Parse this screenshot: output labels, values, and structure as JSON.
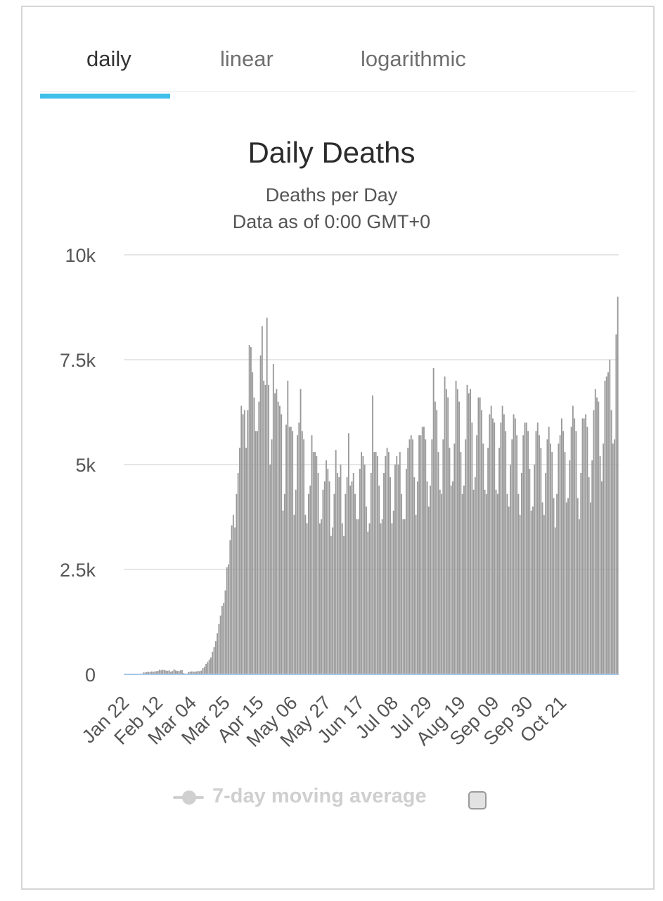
{
  "tabs": [
    {
      "label": "daily",
      "active": true
    },
    {
      "label": "linear",
      "active": false
    },
    {
      "label": "logarithmic",
      "active": false
    }
  ],
  "colors": {
    "accent": "#3fc0ea",
    "bar": "#9a9a9a",
    "grid": "#e6e6e6",
    "baseline": "#a9c6e8"
  },
  "chart_data": {
    "type": "bar",
    "title": "Daily Deaths",
    "subtitle_lines": [
      "Deaths per Day",
      "Data as of 0:00 GMT+0"
    ],
    "xlabel": "",
    "ylabel": "",
    "ylim": [
      0,
      10000
    ],
    "yticks": [
      0,
      2500,
      5000,
      7500,
      10000
    ],
    "ytick_labels": [
      "0",
      "2.5k",
      "5k",
      "7.5k",
      "10k"
    ],
    "xtick_labels": [
      "Jan 22",
      "Feb 12",
      "Mar 04",
      "Mar 25",
      "Apr 15",
      "May 06",
      "May 27",
      "Jun 17",
      "Jul 08",
      "Jul 29",
      "Aug 19",
      "Sep 09",
      "Sep 30",
      "Oct 21"
    ],
    "grid": true,
    "series": [
      {
        "name": "Daily Deaths",
        "values": [
          0,
          0,
          0,
          0,
          0,
          0,
          0,
          0,
          0,
          0,
          0,
          0,
          45,
          45,
          55,
          60,
          55,
          70,
          60,
          70,
          75,
          85,
          110,
          95,
          110,
          100,
          90,
          85,
          95,
          60,
          80,
          120,
          95,
          80,
          80,
          95,
          100,
          30,
          20,
          10,
          55,
          60,
          70,
          65,
          60,
          70,
          80,
          75,
          90,
          150,
          180,
          250,
          300,
          350,
          400,
          540,
          650,
          790,
          980,
          1200,
          1400,
          1630,
          1700,
          2000,
          2550,
          2620,
          3200,
          3550,
          3800,
          3500,
          4300,
          4800,
          5400,
          6400,
          6200,
          6300,
          5400,
          6300,
          7850,
          7800,
          7200,
          6600,
          5800,
          5800,
          6500,
          7600,
          8300,
          7000,
          6900,
          8500,
          6900,
          5000,
          5600,
          7400,
          6700,
          6800,
          6500,
          6400,
          6200,
          3900,
          4300,
          5950,
          7000,
          5900,
          5900,
          5800,
          3800,
          4400,
          5700,
          6000,
          6800,
          5800,
          5600,
          3800,
          3600,
          4300,
          4500,
          5700,
          5300,
          5300,
          5200,
          4800,
          3600,
          3700,
          4400,
          4600,
          5100,
          4900,
          4600,
          3300,
          3500,
          4300,
          5350,
          4800,
          4700,
          5000,
          3600,
          3300,
          4300,
          4700,
          5750,
          4500,
          4600,
          4800,
          4300,
          3700,
          3700,
          4900,
          5300,
          5200,
          5000,
          4000,
          3400,
          3600,
          4800,
          6650,
          5300,
          5300,
          5200,
          4500,
          3600,
          3700,
          4800,
          5200,
          5400,
          5300,
          4700,
          3600,
          3900,
          5000,
          5200,
          5000,
          5300,
          4300,
          3700,
          3700,
          4900,
          5400,
          5600,
          5700,
          5600,
          4700,
          3800,
          4600,
          5700,
          5700,
          5900,
          5900,
          5600,
          4600,
          4000,
          4500,
          5600,
          7300,
          6500,
          6300,
          5300,
          4400,
          4300,
          5600,
          7100,
          6800,
          6600,
          5400,
          4500,
          4600,
          5500,
          7000,
          6800,
          6500,
          5300,
          4300,
          4500,
          5600,
          6900,
          6700,
          6800,
          6000,
          4400,
          4700,
          5700,
          6600,
          6600,
          6300,
          5500,
          4400,
          4300,
          5400,
          6200,
          6400,
          6100,
          6000,
          4400,
          4300,
          5400,
          6000,
          6400,
          6200,
          5800,
          4300,
          4000,
          5000,
          5600,
          6200,
          6100,
          5700,
          4300,
          3800,
          4800,
          5700,
          6000,
          6000,
          5800,
          4900,
          3900,
          4000,
          5000,
          5800,
          6000,
          5700,
          5400,
          4100,
          3800,
          4800,
          5600,
          5900,
          5500,
          5300,
          4200,
          3500,
          4300,
          5500,
          5700,
          6100,
          5800,
          5300,
          4100,
          4200,
          5100,
          5900,
          6400,
          6100,
          5800,
          4200,
          3700,
          4800,
          6100,
          6100,
          6200,
          5900,
          4700,
          4100,
          5100,
          6300,
          6800,
          6600,
          6500,
          5200,
          4600,
          5500,
          7000,
          7100,
          7200,
          7500,
          6300,
          5500,
          5600,
          8100,
          9000
        ]
      }
    ]
  },
  "legend": {
    "label": "7-day moving average"
  }
}
